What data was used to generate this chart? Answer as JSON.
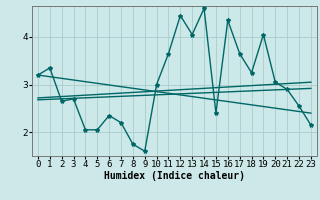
{
  "xlabel": "Humidex (Indice chaleur)",
  "background_color": "#cce8e8",
  "plot_bg_color": "#cce8e8",
  "grid_color": "#aacccc",
  "line_color": "#006666",
  "xlim": [
    -0.5,
    23.5
  ],
  "ylim": [
    1.5,
    4.65
  ],
  "yticks": [
    2,
    3,
    4
  ],
  "data_x": [
    0,
    1,
    2,
    3,
    4,
    5,
    6,
    7,
    8,
    9,
    10,
    11,
    12,
    13,
    14,
    15,
    16,
    17,
    18,
    19,
    20,
    21,
    22,
    23
  ],
  "data_y": [
    3.2,
    3.35,
    2.65,
    2.7,
    2.05,
    2.05,
    2.35,
    2.2,
    1.75,
    1.6,
    3.0,
    3.65,
    4.45,
    4.05,
    4.6,
    2.4,
    4.35,
    3.65,
    3.25,
    4.05,
    3.05,
    2.9,
    2.55,
    2.15
  ],
  "trend1_x": [
    0,
    23
  ],
  "trend1_y": [
    3.2,
    2.4
  ],
  "trend2_x": [
    0,
    23
  ],
  "trend2_y": [
    2.68,
    2.92
  ],
  "trend3_x": [
    0,
    23
  ],
  "trend3_y": [
    2.72,
    3.05
  ],
  "marker_size": 3,
  "line_width": 1.0,
  "xlabel_fontsize": 7,
  "tick_fontsize": 6.5
}
